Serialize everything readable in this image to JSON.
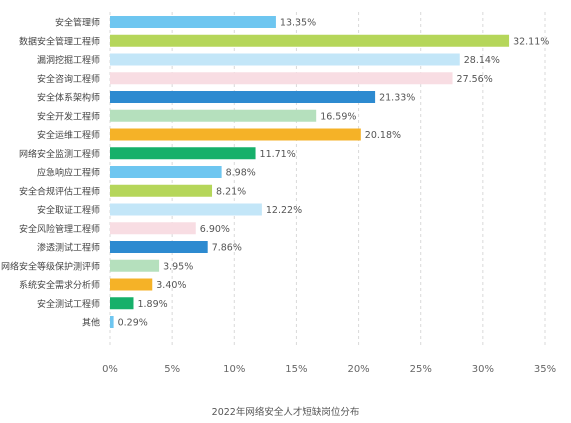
{
  "chart_data": {
    "type": "bar",
    "orientation": "horizontal",
    "title": "2022年网络安全人才短缺岗位分布",
    "categories": [
      "安全管理师",
      "数据安全管理工程师",
      "漏洞挖掘工程师",
      "安全咨询工程师",
      "安全体系架构师",
      "安全开发工程师",
      "安全运维工程师",
      "网络安全监测工程师",
      "应急响应工程师",
      "安全合规评估工程师",
      "安全取证工程师",
      "安全风险管理工程师",
      "渗透测试工程师",
      "网络安全等级保护测评师",
      "系统安全需求分析师",
      "安全测试工程师",
      "其他"
    ],
    "values": [
      13.35,
      32.11,
      28.14,
      27.56,
      21.33,
      16.59,
      20.18,
      11.71,
      8.98,
      8.21,
      12.22,
      6.9,
      7.86,
      3.95,
      3.4,
      1.89,
      0.29
    ],
    "value_labels": [
      "13.35%",
      "32.11%",
      "28.14%",
      "27.56%",
      "21.33%",
      "16.59%",
      "20.18%",
      "11.71%",
      "8.98%",
      "8.21%",
      "12.22%",
      "6.90%",
      "7.86%",
      "3.95%",
      "3.40%",
      "1.89%",
      "0.29%"
    ],
    "colors": [
      "#6ec6f0",
      "#b5d65a",
      "#c3e6f8",
      "#f8dde3",
      "#2d8ad0",
      "#b5e0bd",
      "#f5b227",
      "#16b06a",
      "#6ec6f0",
      "#b5d65a",
      "#c3e6f8",
      "#f8dde3",
      "#2d8ad0",
      "#b5e0bd",
      "#f5b227",
      "#16b06a",
      "#6ec6f0"
    ],
    "x_ticks": [
      0,
      5,
      10,
      15,
      20,
      25,
      30,
      35
    ],
    "x_tick_labels": [
      "0%",
      "5%",
      "10%",
      "15%",
      "20%",
      "25%",
      "30%",
      "35%"
    ],
    "xlim": [
      0,
      35
    ],
    "xlabel": "",
    "ylabel": "",
    "grid": "vertical dashed",
    "legend": "none"
  }
}
